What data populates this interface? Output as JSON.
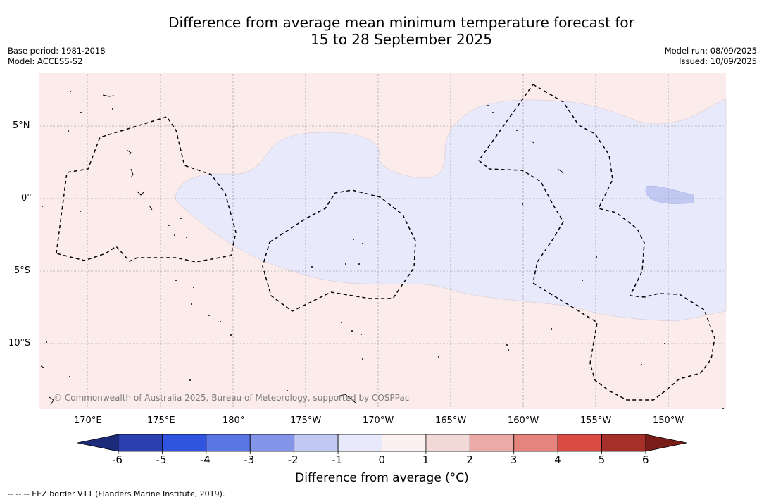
{
  "title_line1": "Difference from average mean minimum temperature forecast for",
  "title_line2": "15 to 28 September 2025",
  "base_period": "Base period: 1981-2018",
  "model": "Model: ACCESS-S2",
  "model_run": "Model run: 08/09/2025",
  "issued": "Issued: 10/09/2025",
  "copyright": "© Commonwealth of Australia 2025, Bureau of Meteorology, supported by COSPPac",
  "colorbar": {
    "label": "Difference from average (°C)",
    "ticks": [
      "-6",
      "-5",
      "-4",
      "-3",
      "-2",
      "-1",
      "0",
      "1",
      "2",
      "3",
      "4",
      "5",
      "6"
    ],
    "colors": [
      "#2b3fae",
      "#3054e0",
      "#5a76e4",
      "#8495e9",
      "#c1c8f2",
      "#e8eafb",
      "#fcf0f0",
      "#f0d9d7",
      "#ebaaa5",
      "#e5837d",
      "#d94b43",
      "#a62f2a"
    ],
    "under_color": "#1c2a7a",
    "over_color": "#7a1d19"
  },
  "lon_labels": [
    "170°E",
    "175°E",
    "180°",
    "175°W",
    "170°W",
    "165°W",
    "160°W",
    "155°W",
    "150°W"
  ],
  "lat_labels": [
    "5°N",
    "0°",
    "5°S",
    "10°S"
  ],
  "eez_legend": "-- -- -- EEZ border V11 (Flanders Marine Institute, 2019).",
  "map_colors": {
    "background": "#fbeceb",
    "anomaly_minus1": "#e8eafb",
    "anomaly_minus2": "#c1c8f2"
  }
}
